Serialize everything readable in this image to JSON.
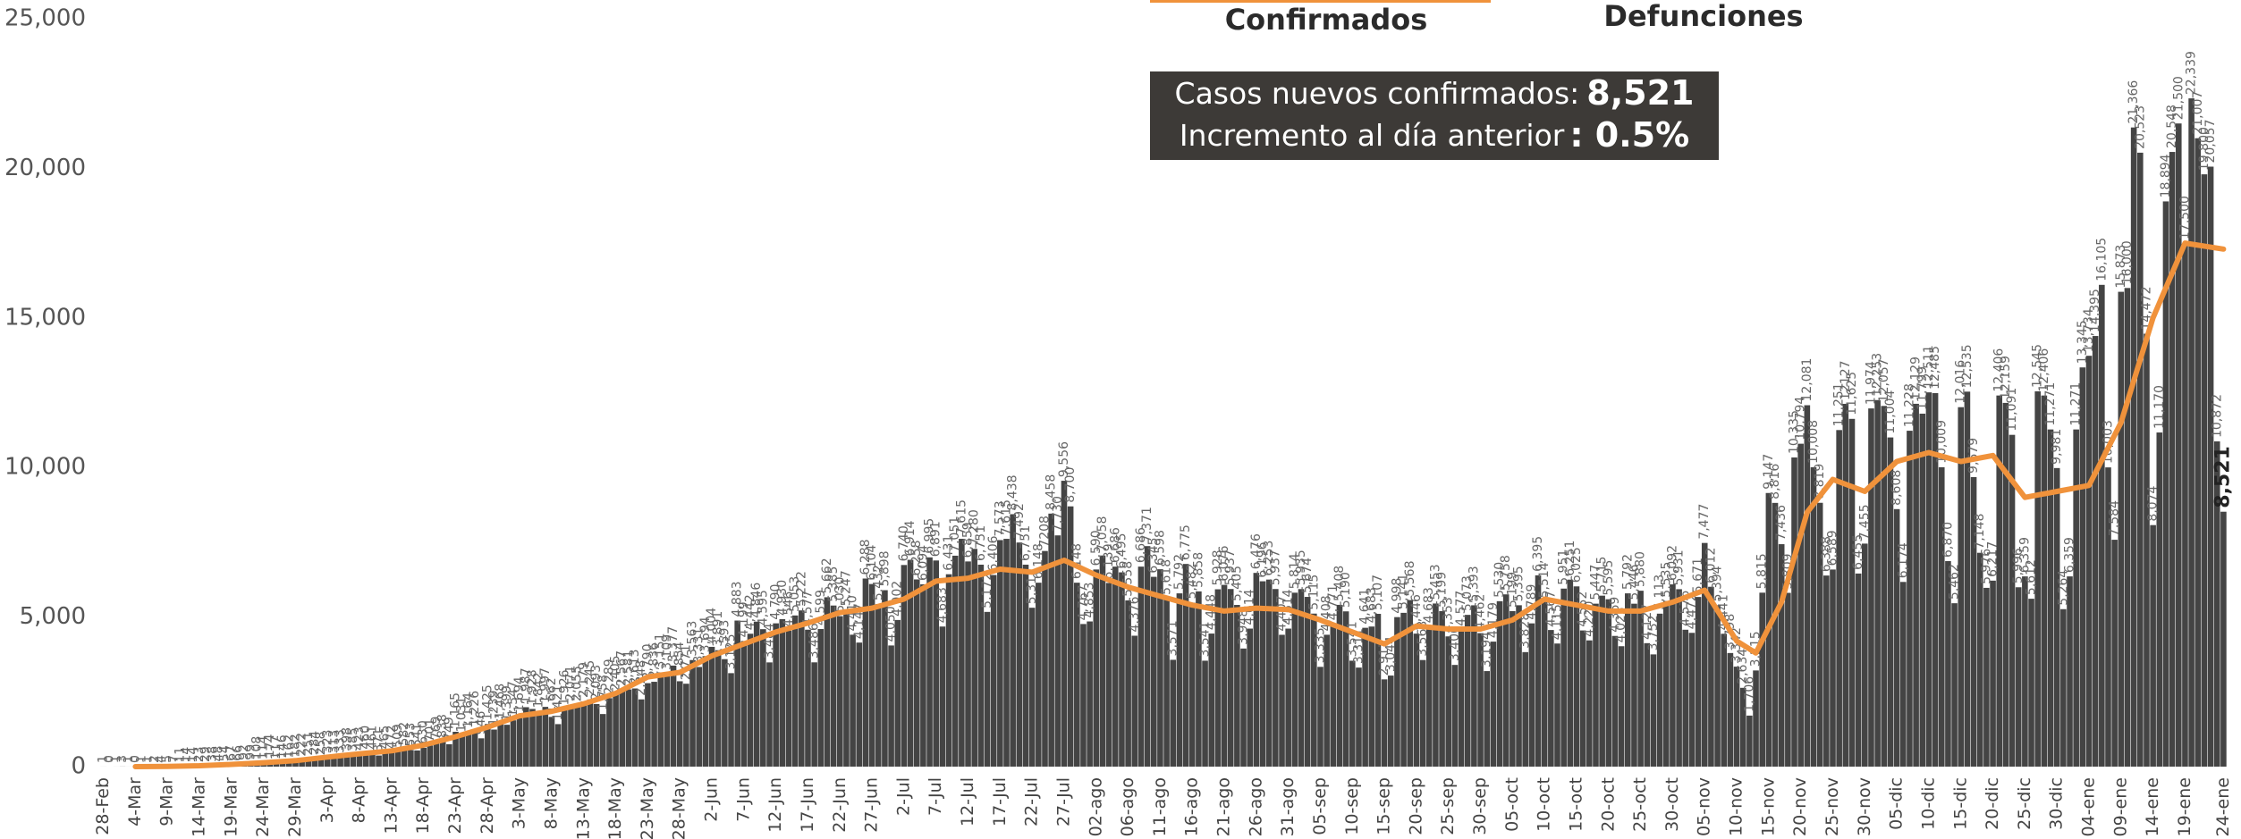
{
  "chart_data": {
    "type": "bar",
    "tabs": [
      "Confirmados",
      "Defunciones"
    ],
    "annotation": {
      "label1": "Casos nuevos confirmados:",
      "value1": "8,521",
      "label2": "Incremento al día anterior",
      "value2": ": 0.5%"
    },
    "ylim": [
      0,
      25000
    ],
    "yticks": [
      0,
      {
        "value": 5000,
        "label": "5,000"
      },
      {
        "value": 10000,
        "label": "10,000"
      },
      {
        "value": 15000,
        "label": "15,000"
      },
      {
        "value": 20000,
        "label": "20,000"
      },
      {
        "value": 25000,
        "label": "25,000"
      }
    ],
    "grid": false,
    "color": "#444444",
    "categories": [
      "28-Feb",
      null,
      null,
      null,
      null,
      "4-Mar",
      null,
      null,
      null,
      null,
      "9-Mar",
      null,
      null,
      null,
      null,
      "14-Mar",
      null,
      null,
      null,
      null,
      "19-Mar",
      null,
      null,
      null,
      null,
      "24-Mar",
      null,
      null,
      null,
      null,
      "29-Mar",
      null,
      null,
      null,
      null,
      "3-Apr",
      null,
      null,
      null,
      null,
      "8-Apr",
      null,
      null,
      null,
      null,
      "13-Apr",
      null,
      null,
      null,
      null,
      "18-Apr",
      null,
      null,
      null,
      null,
      "23-Apr",
      null,
      null,
      null,
      null,
      "28-Apr",
      null,
      null,
      null,
      null,
      "3-May",
      null,
      null,
      null,
      null,
      "8-May",
      null,
      null,
      null,
      null,
      "13-May",
      null,
      null,
      null,
      null,
      "18-May",
      null,
      null,
      null,
      null,
      "23-May",
      null,
      null,
      null,
      null,
      "28-May",
      null,
      null,
      null,
      null,
      "2-Jun",
      null,
      null,
      null,
      null,
      "7-Jun",
      null,
      null,
      null,
      null,
      "12-Jun",
      null,
      null,
      null,
      null,
      "17-Jun",
      null,
      null,
      null,
      null,
      "22-Jun",
      null,
      null,
      null,
      null,
      "27-Jun",
      null,
      null,
      null,
      null,
      "2-Jul",
      null,
      null,
      null,
      null,
      "7-Jul",
      null,
      null,
      null,
      null,
      "12-Jul",
      null,
      null,
      null,
      null,
      "17-Jul",
      null,
      null,
      null,
      null,
      "22-Jul",
      null,
      null,
      null,
      null,
      "27-Jul",
      null,
      null,
      null,
      null,
      "02-ago",
      null,
      null,
      null,
      null,
      "06-ago",
      null,
      null,
      null,
      null,
      "11-ago",
      null,
      null,
      null,
      null,
      "16-ago",
      null,
      null,
      null,
      null,
      "21-ago",
      null,
      null,
      null,
      null,
      "26-ago",
      null,
      null,
      null,
      null,
      "31-ago",
      null,
      null,
      null,
      null,
      "05-sep",
      null,
      null,
      null,
      null,
      "10-sep",
      null,
      null,
      null,
      null,
      "15-sep",
      null,
      null,
      null,
      null,
      "20-sep",
      null,
      null,
      null,
      null,
      "25-sep",
      null,
      null,
      null,
      null,
      "30-sep",
      null,
      null,
      null,
      null,
      "05-oct",
      null,
      null,
      null,
      null,
      "10-oct",
      null,
      null,
      null,
      null,
      "15-oct",
      null,
      null,
      null,
      null,
      "20-oct",
      null,
      null,
      null,
      null,
      "25-oct",
      null,
      null,
      null,
      null,
      "30-oct",
      null,
      null,
      null,
      null,
      "05-nov",
      null,
      null,
      null,
      null,
      "10-nov",
      null,
      null,
      null,
      null,
      "15-nov",
      null,
      null,
      null,
      null,
      "20-nov",
      null,
      null,
      null,
      null,
      "25-nov",
      null,
      null,
      null,
      null,
      "30-nov",
      null,
      null,
      null,
      null,
      "05-dic",
      null,
      null,
      null,
      null,
      "10-dic",
      null,
      null,
      null,
      null,
      "15-dic",
      null,
      null,
      null,
      null,
      "20-dic",
      null,
      null,
      null,
      null,
      "25-dic",
      null,
      null,
      null,
      null,
      "30-dic",
      null,
      null,
      null,
      null,
      "04-ene",
      null,
      null,
      null,
      null,
      "09-ene",
      null,
      null,
      null,
      null,
      "14-ene",
      null,
      null,
      null,
      null,
      "19-ene",
      null,
      null,
      null,
      null,
      null,
      "24-ene"
    ],
    "values": [
      1,
      0,
      1,
      3,
      1,
      0,
      1,
      1,
      2,
      4,
      5,
      7,
      11,
      14,
      14,
      23,
      29,
      38,
      48,
      54,
      67,
      66,
      92,
      99,
      108,
      114,
      174,
      117,
      146,
      162,
      182,
      222,
      251,
      284,
      258,
      323,
      313,
      333,
      398,
      385,
      423,
      460,
      461,
      371,
      465,
      472,
      509,
      582,
      553,
      541,
      630,
      701,
      769,
      838,
      749,
      1165,
      1031,
      1164,
      1226,
      946,
      1425,
      1239,
      1468,
      1399,
      1547,
      1694,
      1987,
      1928,
      1842,
      1997,
      1662,
      1421,
      1926,
      2071,
      2055,
      2179,
      2245,
      2093,
      1758,
      2289,
      2405,
      2567,
      2581,
      2613,
      2248,
      2790,
      2836,
      3151,
      3109,
      3377,
      2854,
      2771,
      3563,
      3331,
      3694,
      4004,
      3891,
      3593,
      3125,
      4883,
      4199,
      4442,
      4846,
      4595,
      3484,
      4790,
      4930,
      4546,
      5053,
      5222,
      4577,
      3486,
      4599,
      5662,
      5385,
      5030,
      5247,
      4410,
      4147,
      6288,
      6104,
      5432,
      5898,
      4050,
      4902,
      6740,
      6914,
      6258,
      6094,
      6995,
      6891,
      4683,
      6431,
      7051,
      7615,
      6859,
      7280,
      6751,
      5172,
      6406,
      7573,
      7615,
      8438,
      7492,
      6751,
      5311,
      6148,
      7208,
      8458,
      7730,
      9556,
      8700,
      6148,
      4767,
      4853,
      6590,
      7058,
      6139,
      6686,
      6495,
      5558,
      4376,
      6686,
      7371,
      6345,
      6598,
      5618,
      3571,
      5792,
      6775,
      5482,
      5858,
      3541,
      4448,
      5928,
      6076,
      5937,
      5405,
      3948,
      4614,
      6476,
      6196,
      6253,
      5937,
      4407,
      4614,
      5814,
      5935,
      5674,
      5115,
      3335,
      4408,
      4771,
      5408,
      5190,
      3541,
      3311,
      4641,
      4683,
      5107,
      2917,
      3044,
      4998,
      5141,
      5568,
      4446,
      3563,
      4683,
      5453,
      5199,
      4353,
      3400,
      4577,
      5073,
      5393,
      4462,
      3194,
      4179,
      5530,
      5758,
      5199,
      5395,
      3828,
      4789,
      6395,
      5514,
      4567,
      4115,
      5951,
      6251,
      6025,
      4552,
      4220,
      5447,
      5715,
      5595,
      4369,
      4025,
      5792,
      5446,
      5880,
      4127,
      3752,
      5113,
      5535,
      6092,
      5931,
      4576,
      4472,
      5671,
      7477,
      6012,
      5394,
      4441,
      3798,
      3342,
      2634,
      1706,
      3215,
      5815,
      9147,
      8816,
      7436,
      5809,
      10335,
      10794,
      12081,
      10008,
      8819,
      6388,
      6589,
      11251,
      12127,
      11625,
      6455,
      7455,
      11974,
      12253,
      12057,
      11004,
      8608,
      6174,
      11228,
      12129,
      11799,
      12511,
      12485,
      10009,
      6870,
      5462,
      12016,
      12535,
      9679,
      7148,
      5976,
      6217,
      12406,
      12159,
      11091,
      5996,
      6359,
      5612,
      12545,
      12406,
      11271,
      9981,
      5264,
      6359,
      11271,
      13345,
      13734,
      14395,
      16105,
      10003,
      7584,
      15873,
      16000,
      21366,
      20523,
      14472,
      8074,
      11170,
      18894,
      20548,
      21500,
      17500,
      22339,
      21007,
      19800,
      20057,
      10872,
      8521
    ],
    "value_labels": [
      "1",
      "0",
      "1",
      "3",
      "1",
      "0",
      "1",
      "1",
      "2",
      "4",
      "5",
      "7",
      "11",
      "14",
      "14",
      "23",
      "29",
      "38",
      "48",
      "54",
      "67",
      "66",
      "92",
      "99",
      "108",
      "114",
      "174",
      "117",
      "146",
      "162",
      "182",
      "222",
      "251",
      "284",
      "258",
      "323",
      "313",
      "333",
      "398",
      "385",
      "423",
      "460",
      "461",
      "371",
      "465",
      "472",
      "509",
      "582",
      "553",
      "541",
      "630",
      "701",
      "769",
      "838",
      "749",
      "1,165",
      "1,031",
      "1,164",
      "1,226",
      "946",
      "1,425",
      "1,239",
      "1,468",
      "1,399",
      "1,547",
      "1,694",
      "1,987",
      "1,928",
      "1,842",
      "1,997",
      "1,662",
      "1,421",
      "1,926",
      "2,071",
      "2,055",
      "2,179",
      "2,245",
      "2,093",
      "1,758",
      "2,289",
      "2,405",
      "2,567",
      "2,581",
      "2,613",
      "2,248",
      "2,790",
      "2,836",
      "3,151",
      "3,109",
      "3,377",
      "2,854",
      "2,771",
      "3,563",
      "3,331",
      "3,694",
      "4,004",
      "3,891",
      "3,593",
      "3,125",
      "4,883",
      "4,199",
      "4,442",
      "4,846",
      "4,595",
      "3,484",
      "4,790",
      "4,930",
      "4,546",
      "5,053",
      "5,222",
      "4,577",
      "3,486",
      "4,599",
      "5,662",
      "5,385",
      "5,030",
      "5,247",
      "4,410",
      "4,147",
      "6,288",
      "6,104",
      "5,432",
      "5,898",
      "4,050",
      "4,902",
      "6,740",
      "6,914",
      "6,258",
      "6,094",
      "6,995",
      "6,891",
      "4,683",
      "6,431",
      "7,051",
      "7,615",
      "6,859",
      "7,280",
      "6,751",
      "5,172",
      "6,406",
      "7,573",
      "7,615",
      "8,438",
      "7,492",
      "6,751",
      "5,311",
      "6,148",
      "7208",
      "8,458",
      "7,730",
      "9,556",
      "8,700",
      "6,148",
      "4,767",
      "4,853",
      "6,590",
      "7,058",
      "6,139",
      "6,686",
      "6,495",
      "5,558",
      "4,376",
      "6,686",
      "7,371",
      "6,345",
      "6,598",
      "5,618",
      "3,571",
      "5,792",
      "6,775",
      "5,482",
      "5,858",
      "3,541",
      "4,448",
      "5,928",
      "6,076",
      "5,937",
      "5,405",
      "3,948",
      "4,614",
      "6,476",
      "6,196",
      "6,253",
      "5,937",
      "4,407",
      "4,614",
      "5,814",
      "5,935",
      "5,674",
      "5,115",
      "3,335",
      "4,408",
      "4,771",
      "5,408",
      "5,190",
      "3,541",
      "3,311",
      "4,641",
      "4,683",
      "5,107",
      "2,917",
      "3,044",
      "4,998",
      "5,141",
      "5,568",
      "4,446",
      "3,563",
      "4,683",
      "5,453",
      "5,199",
      "4,353",
      "3,400",
      "4,577",
      "5,073",
      "5,393",
      "4,462",
      "3,194",
      "4,179",
      "5,530",
      "5,758",
      "5,199",
      "5,395",
      "3,828",
      "4,789",
      "6,395",
      "5,514",
      "4,567",
      "4,115",
      "5,951",
      "6,251",
      "6,025",
      "4,552",
      "4,220",
      "5,447",
      "5,715",
      "5,595",
      "4,369",
      "4,025",
      "5,792",
      "5,446",
      "5,880",
      "4,127",
      "3,752",
      "5,113",
      "5,535",
      "6,092",
      "5,931",
      "4,576",
      "4,472",
      "5,671",
      "7,477",
      "6,012",
      "5,394",
      "4,441",
      "3,798",
      "3,342",
      "2,634",
      "1,706",
      "3,215",
      "5,815",
      "9,147",
      "8,816",
      "7,436",
      "5,809",
      "10,335",
      "10,794",
      "12,081",
      "10,008",
      "8,819",
      "6,388",
      "6,589",
      "11,251",
      "12127",
      "11,625",
      "6,455",
      "7,455",
      "11,974",
      "12,253",
      "12,057",
      "11,004",
      "8,608",
      "6,174",
      "11,228",
      "12,129",
      "11,799",
      "12,511",
      "12,485",
      "10,009",
      "6,870",
      "5,462",
      "12,016",
      "12,535",
      "9,679",
      "7,148",
      "5,976",
      "6,217",
      "12,406",
      "12,159",
      "11,091",
      "5,996",
      "6,359",
      "5,612",
      "12,545",
      "12,406",
      "11,271",
      "9,981",
      "5,264",
      "6,359",
      "11,271",
      "13,345",
      "13,734",
      "14,395",
      "16,105",
      "10,003",
      "7,584",
      "15,873",
      "16,000",
      "21,366",
      "20,523",
      "14,472",
      "8,074",
      "11,170",
      "18,894",
      "20,548",
      "21,500",
      "17,500",
      "22,339",
      "21,007",
      "19,800",
      "20,057",
      "10,872",
      "8,521"
    ],
    "trend": {
      "color": "#f0923b",
      "x": [
        5,
        10,
        15,
        20,
        25,
        30,
        35,
        40,
        45,
        50,
        55,
        60,
        65,
        70,
        75,
        80,
        85,
        90,
        95,
        100,
        105,
        110,
        115,
        120,
        125,
        130,
        135,
        140,
        145,
        150,
        155,
        160,
        165,
        170,
        175,
        180,
        185,
        190,
        195,
        200,
        205,
        210,
        215,
        220,
        225,
        230,
        235,
        240,
        245,
        250,
        255,
        258,
        262,
        266,
        270,
        275,
        280,
        285,
        290,
        295,
        300,
        305,
        310,
        315,
        320,
        325,
        331
      ],
      "values": [
        1,
        8,
        30,
        75,
        130,
        200,
        320,
        430,
        530,
        720,
        1000,
        1320,
        1700,
        1850,
        2100,
        2450,
        3000,
        3150,
        3700,
        4100,
        4500,
        4800,
        5150,
        5300,
        5600,
        6200,
        6300,
        6600,
        6500,
        6900,
        6400,
        6000,
        5700,
        5400,
        5200,
        5300,
        5250,
        4900,
        4500,
        4100,
        4700,
        4600,
        4600,
        4900,
        5600,
        5400,
        5200,
        5200,
        5500,
        5900,
        4200,
        3800,
        5500,
        8500,
        9600,
        9200,
        10200,
        10500,
        10200,
        10400,
        9000,
        9200,
        9400,
        11500,
        15000,
        17500,
        17300
      ]
    }
  }
}
